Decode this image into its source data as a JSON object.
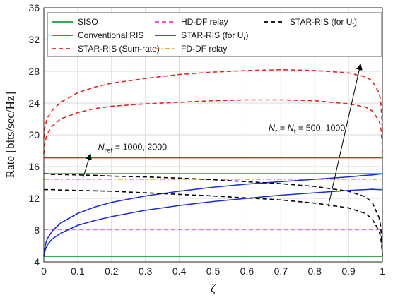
{
  "chart_data": {
    "type": "line",
    "xlabel": "ζ",
    "ylabel": "Rate [bits/sec/Hz]",
    "xlim": [
      0,
      1
    ],
    "ylim": [
      4,
      36
    ],
    "xticks": [
      "0",
      "0.1",
      "0.2",
      "0.3",
      "0.4",
      "0.5",
      "0.6",
      "0.7",
      "0.8",
      "0.9",
      "1"
    ],
    "yticks": [
      "4",
      "8",
      "12",
      "16",
      "20",
      "24",
      "28",
      "32",
      "36"
    ],
    "grid": true,
    "legend_position": "top",
    "x": [
      0,
      0.001,
      0.005,
      0.01,
      0.025,
      0.05,
      0.1,
      0.15,
      0.2,
      0.3,
      0.4,
      0.5,
      0.6,
      0.7,
      0.8,
      0.9,
      0.95,
      0.97,
      0.99,
      0.995,
      0.999,
      1
    ],
    "series": [
      {
        "name": "SISO",
        "color": "#1a9e3a",
        "dash": "solid",
        "values": [
          4.7,
          4.7,
          4.7,
          4.7,
          4.7,
          4.7,
          4.7,
          4.7,
          4.7,
          4.7,
          4.7,
          4.7,
          4.7,
          4.7,
          4.7,
          4.7,
          4.7,
          4.7,
          4.7,
          4.7,
          4.7,
          4.7
        ]
      },
      {
        "name": "Conventional RIS",
        "color": "#e8221c",
        "dash": "solid",
        "values": [
          17.1,
          17.1,
          17.1,
          17.1,
          17.1,
          17.1,
          17.1,
          17.1,
          17.1,
          17.1,
          17.1,
          17.1,
          17.1,
          17.1,
          17.1,
          17.1,
          17.1,
          17.1,
          17.1,
          17.1,
          17.1,
          17.1
        ]
      },
      {
        "name": "",
        "color": "#e8221c",
        "dash": "solid",
        "values": [
          15.1,
          15.1,
          15.1,
          15.1,
          15.1,
          15.1,
          15.1,
          15.1,
          15.1,
          15.1,
          15.1,
          15.1,
          15.1,
          15.1,
          15.1,
          15.1,
          15.1,
          15.1,
          15.1,
          15.1,
          15.1,
          15.1
        ]
      },
      {
        "name": "STAR-RIS (Sum-rate)",
        "color": "#e8221c",
        "dash": "dashed",
        "values": [
          19.6,
          20.4,
          21.3,
          22.1,
          23.1,
          24.1,
          25.3,
          26.0,
          26.5,
          27.1,
          27.6,
          27.9,
          28.1,
          28.2,
          28.1,
          27.8,
          27.3,
          26.8,
          25.3,
          24.3,
          21.6,
          19.6
        ]
      },
      {
        "name": "",
        "color": "#e8221c",
        "dash": "dashed",
        "values": [
          17.6,
          18.4,
          19.3,
          20.1,
          21.1,
          22.0,
          22.8,
          23.3,
          23.6,
          23.9,
          24.1,
          24.3,
          24.4,
          24.4,
          24.3,
          23.9,
          23.5,
          23.0,
          21.8,
          21.0,
          19.2,
          17.6
        ]
      },
      {
        "name": "HD-DF relay",
        "color": "#ee3ae8",
        "dash": "dashed",
        "values": [
          8.1,
          8.1,
          8.1,
          8.1,
          8.1,
          8.1,
          8.1,
          8.1,
          8.1,
          8.1,
          8.1,
          8.1,
          8.1,
          8.1,
          8.1,
          8.1,
          8.1,
          8.1,
          8.1,
          8.1,
          8.1,
          8.1
        ]
      },
      {
        "name": "FD-DF relay",
        "color": "#e8a21c",
        "dash": "dashdot",
        "values": [
          14.4,
          14.4,
          14.4,
          14.4,
          14.4,
          14.4,
          14.4,
          14.4,
          14.4,
          14.4,
          14.4,
          14.4,
          14.4,
          14.4,
          14.4,
          14.4,
          14.4,
          14.4,
          14.4,
          14.4,
          14.4,
          14.4
        ]
      },
      {
        "name": "STAR-RIS (for U_r)",
        "color": "#1c2fd6",
        "dash": "solid",
        "values": [
          4.7,
          5.3,
          6.2,
          6.9,
          7.9,
          8.9,
          10.1,
          10.9,
          11.5,
          12.3,
          12.9,
          13.4,
          13.8,
          14.1,
          14.4,
          14.7,
          14.9,
          14.95,
          15.05,
          15.08,
          15.1,
          15.1
        ]
      },
      {
        "name": "",
        "color": "#1c2fd6",
        "dash": "solid",
        "values": [
          4.7,
          5.0,
          5.6,
          6.1,
          6.9,
          7.6,
          8.6,
          9.2,
          9.7,
          10.5,
          11.1,
          11.6,
          12.0,
          12.4,
          12.7,
          13.0,
          13.1,
          13.15,
          13.1,
          13.1,
          13.1,
          13.1
        ]
      },
      {
        "name": "STAR-RIS (for U_t)",
        "color": "#000000",
        "dash": "dashed",
        "values": [
          15.1,
          15.1,
          15.1,
          15.1,
          15.0,
          15.0,
          14.95,
          14.9,
          14.8,
          14.7,
          14.55,
          14.35,
          14.1,
          13.85,
          13.5,
          12.9,
          12.2,
          11.5,
          9.6,
          8.5,
          6.0,
          4.7
        ]
      },
      {
        "name": "",
        "color": "#000000",
        "dash": "dashed",
        "values": [
          13.1,
          13.1,
          13.1,
          13.1,
          13.1,
          13.05,
          13.0,
          12.95,
          12.9,
          12.7,
          12.5,
          12.3,
          12.05,
          11.8,
          11.4,
          10.8,
          10.1,
          9.4,
          7.9,
          7.1,
          5.5,
          4.7
        ]
      }
    ],
    "legend": [
      {
        "label": "SISO",
        "sub": "",
        "color": "#1a9e3a",
        "dash": "solid"
      },
      {
        "label": "Conventional RIS",
        "sub": "",
        "color": "#e8221c",
        "dash": "solid"
      },
      {
        "label": "STAR-RIS (Sum-rate)",
        "sub": "",
        "color": "#e8221c",
        "dash": "dashed"
      },
      {
        "label": "HD-DF relay",
        "sub": "",
        "color": "#ee3ae8",
        "dash": "dashed"
      },
      {
        "label": "STAR-RIS (for U",
        "sub": "r",
        "color": "#1c2fd6",
        "dash": "solid"
      },
      {
        "label": "FD-DF relay",
        "sub": "",
        "color": "#e8a21c",
        "dash": "dashdot"
      },
      {
        "label": "STAR-RIS (for U",
        "sub": "t",
        "color": "#000000",
        "dash": "dashed"
      }
    ],
    "annotations": {
      "nref": {
        "symbol": "N",
        "sub": "ref",
        "value": " = 1000, 2000"
      },
      "nrt": {
        "symbol1": "N",
        "sub1": "r",
        "eq": " =  ",
        "symbol2": "N",
        "sub2": "t",
        "value": " = 500, 1000"
      }
    }
  }
}
